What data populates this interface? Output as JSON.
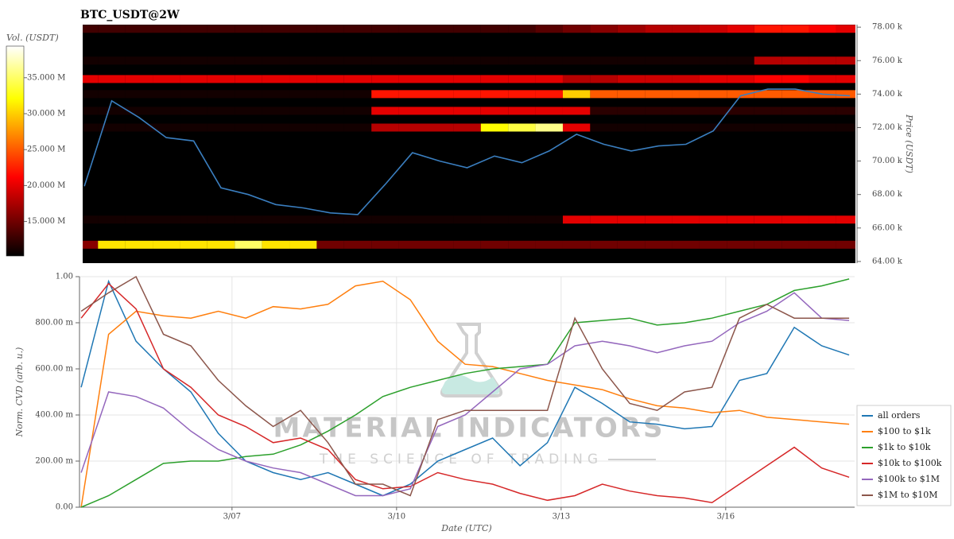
{
  "chart_data": [
    {
      "type": "heatmap",
      "title": "BTC_USDT@2W",
      "y_label": "Price (USDT)",
      "colorbar_label": "Vol. (USDT)",
      "xlim": [
        4.22,
        18.35
      ],
      "ylim": [
        63900,
        78150
      ],
      "yticks": [
        {
          "value": 64000,
          "label": "64.00 k"
        },
        {
          "value": 66000,
          "label": "66.00 k"
        },
        {
          "value": 68000,
          "label": "68.00 k"
        },
        {
          "value": 70000,
          "label": "70.00 k"
        },
        {
          "value": 72000,
          "label": "72.00 k"
        },
        {
          "value": 74000,
          "label": "74.00 k"
        },
        {
          "value": 76000,
          "label": "76.00 k"
        },
        {
          "value": 78000,
          "label": "78.00 k"
        }
      ],
      "clim": [
        10.2,
        39.4
      ],
      "cticks": [
        {
          "value": 15,
          "label": "15.000 M"
        },
        {
          "value": 20,
          "label": "20.000 M"
        },
        {
          "value": 25,
          "label": "25.000 M"
        },
        {
          "value": 30,
          "label": "30.000 M"
        },
        {
          "value": 35,
          "label": "35.000 M"
        }
      ],
      "x": [
        4.25,
        4.75,
        5.25,
        5.75,
        6.25,
        6.75,
        7.25,
        7.75,
        8.25,
        8.75,
        9.25,
        9.75,
        10.25,
        10.75,
        11.25,
        11.75,
        12.25,
        12.75,
        13.25,
        13.75,
        14.25,
        14.75,
        15.25,
        15.75,
        16.25,
        16.75,
        17.25,
        17.75,
        18.25
      ],
      "heatmap": {
        "y": [
          65000,
          66500,
          72000,
          73000,
          74000,
          74900,
          76000,
          77900
        ],
        "z": [
          [
            16,
            31,
            31,
            31,
            31,
            31,
            35,
            31,
            31,
            15,
            15,
            15,
            15,
            15,
            15,
            15,
            15,
            15,
            15,
            15,
            15,
            15,
            15,
            15,
            15,
            15,
            15,
            15,
            15
          ],
          [
            11,
            11,
            11,
            11,
            11,
            11,
            11,
            11,
            11,
            11,
            11,
            11,
            11,
            11,
            11,
            11,
            11,
            11,
            20,
            20,
            20,
            20,
            20,
            20,
            20,
            20,
            20,
            20,
            20
          ],
          [
            11,
            11,
            11,
            11,
            11,
            11,
            11,
            11,
            11,
            11,
            11,
            18,
            18,
            18,
            18,
            32,
            34,
            36,
            20,
            11,
            11,
            11,
            11,
            11,
            11,
            11,
            11,
            11,
            11
          ],
          [
            11,
            11,
            11,
            11,
            11,
            11,
            11,
            11,
            11,
            11,
            11,
            20,
            20,
            20,
            20,
            20,
            20,
            20,
            20,
            12,
            12,
            12,
            12,
            12,
            12,
            12,
            12,
            12,
            12
          ],
          [
            11,
            11,
            11,
            11,
            11,
            11,
            11,
            11,
            11,
            11,
            11,
            22,
            22,
            22,
            22,
            22,
            22,
            22,
            30,
            25,
            25,
            25,
            25,
            25,
            25,
            25,
            25,
            25,
            25
          ],
          [
            20,
            20,
            20,
            20,
            20,
            20,
            20,
            20,
            20,
            20,
            20,
            20,
            20,
            20,
            20,
            20,
            20,
            20,
            18,
            18,
            19,
            19,
            19,
            20,
            20,
            21,
            21,
            20,
            20
          ],
          [
            11,
            11,
            11,
            11,
            11,
            11,
            11,
            11,
            11,
            11,
            11,
            11,
            11,
            11,
            11,
            11,
            11,
            11,
            11,
            11,
            11,
            11,
            11,
            11,
            11,
            18,
            18,
            18,
            18
          ],
          [
            13,
            13,
            13,
            13,
            13,
            13,
            13,
            13,
            13,
            13,
            13,
            13,
            13,
            13,
            13,
            13,
            13,
            14,
            15,
            16,
            17,
            18,
            18,
            19,
            20,
            22,
            22,
            21,
            20
          ]
        ]
      },
      "series": [
        {
          "color": "#3a7ebf",
          "values": [
            68500,
            73600,
            72600,
            71400,
            71200,
            68400,
            68000,
            67400,
            67200,
            66900,
            66800,
            68600,
            70500,
            70000,
            69600,
            70300,
            69900,
            70600,
            71600,
            71000,
            70600,
            70900,
            71000,
            71800,
            73900,
            74300,
            74300,
            74000,
            73900
          ]
        }
      ]
    },
    {
      "type": "line",
      "xlabel": "Date (UTC)",
      "ylabel": "Norm. CVD (arb. u.)",
      "x": [
        4.25,
        4.75,
        5.25,
        5.75,
        6.25,
        6.75,
        7.25,
        7.75,
        8.25,
        8.75,
        9.25,
        9.75,
        10.25,
        10.75,
        11.25,
        11.75,
        12.25,
        12.75,
        13.25,
        13.75,
        14.25,
        14.75,
        15.25,
        15.75,
        16.25,
        16.75,
        17.25,
        17.75,
        18.25
      ],
      "xlim": [
        4.22,
        18.35
      ],
      "xticks": [
        {
          "value": 7,
          "label": "3/07"
        },
        {
          "value": 10,
          "label": "3/10"
        },
        {
          "value": 13,
          "label": "3/13"
        },
        {
          "value": 16,
          "label": "3/16"
        }
      ],
      "ylim": [
        0,
        1
      ],
      "yticks": [
        {
          "value": 0,
          "label": "0.00"
        },
        {
          "value": 0.2,
          "label": "200.00 m"
        },
        {
          "value": 0.4,
          "label": "400.00 m"
        },
        {
          "value": 0.6,
          "label": "600.00 m"
        },
        {
          "value": 0.8,
          "label": "800.00 m"
        },
        {
          "value": 1,
          "label": "1.00"
        }
      ],
      "grid": true,
      "legend": "lower right",
      "series": [
        {
          "name": "all orders",
          "color": "#1f77b4",
          "values": [
            0.52,
            0.98,
            0.72,
            0.6,
            0.5,
            0.32,
            0.2,
            0.15,
            0.12,
            0.15,
            0.1,
            0.05,
            0.1,
            0.2,
            0.25,
            0.3,
            0.18,
            0.28,
            0.52,
            0.45,
            0.37,
            0.36,
            0.34,
            0.35,
            0.55,
            0.58,
            0.78,
            0.7,
            0.66
          ]
        },
        {
          "name": "$100 to $1k",
          "color": "#ff7f0e",
          "values": [
            0.0,
            0.75,
            0.85,
            0.83,
            0.82,
            0.85,
            0.82,
            0.87,
            0.86,
            0.88,
            0.96,
            0.98,
            0.9,
            0.72,
            0.62,
            0.61,
            0.58,
            0.55,
            0.53,
            0.51,
            0.47,
            0.44,
            0.43,
            0.41,
            0.42,
            0.39,
            0.38,
            0.37,
            0.36
          ]
        },
        {
          "name": "$1k to $10k",
          "color": "#2ca02c",
          "values": [
            0.0,
            0.05,
            0.12,
            0.19,
            0.2,
            0.2,
            0.22,
            0.23,
            0.27,
            0.33,
            0.4,
            0.48,
            0.52,
            0.55,
            0.58,
            0.6,
            0.61,
            0.62,
            0.8,
            0.81,
            0.82,
            0.79,
            0.8,
            0.82,
            0.85,
            0.88,
            0.94,
            0.96,
            0.99
          ]
        },
        {
          "name": "$10k to $100k",
          "color": "#d62728",
          "values": [
            0.82,
            0.97,
            0.86,
            0.6,
            0.52,
            0.4,
            0.35,
            0.28,
            0.3,
            0.25,
            0.12,
            0.08,
            0.09,
            0.15,
            0.12,
            0.1,
            0.06,
            0.03,
            0.05,
            0.1,
            0.07,
            0.05,
            0.04,
            0.02,
            0.1,
            0.18,
            0.26,
            0.17,
            0.13
          ]
        },
        {
          "name": "$100k to $1M",
          "color": "#9467bd",
          "values": [
            0.15,
            0.5,
            0.48,
            0.43,
            0.33,
            0.25,
            0.2,
            0.17,
            0.15,
            0.1,
            0.05,
            0.05,
            0.08,
            0.35,
            0.4,
            0.5,
            0.6,
            0.62,
            0.7,
            0.72,
            0.7,
            0.67,
            0.7,
            0.72,
            0.8,
            0.85,
            0.93,
            0.82,
            0.81
          ]
        },
        {
          "name": "$1M to $10M",
          "color": "#8c564b",
          "values": [
            0.85,
            0.93,
            1.0,
            0.75,
            0.7,
            0.55,
            0.44,
            0.35,
            0.42,
            0.28,
            0.1,
            0.1,
            0.05,
            0.38,
            0.42,
            0.42,
            0.42,
            0.42,
            0.82,
            0.6,
            0.45,
            0.42,
            0.5,
            0.52,
            0.82,
            0.88,
            0.82,
            0.82,
            0.82
          ]
        }
      ]
    }
  ],
  "watermark": {
    "title": "MATERIAL INDICATORS",
    "subtitle": "THE SCIENCE OF TRADING"
  }
}
